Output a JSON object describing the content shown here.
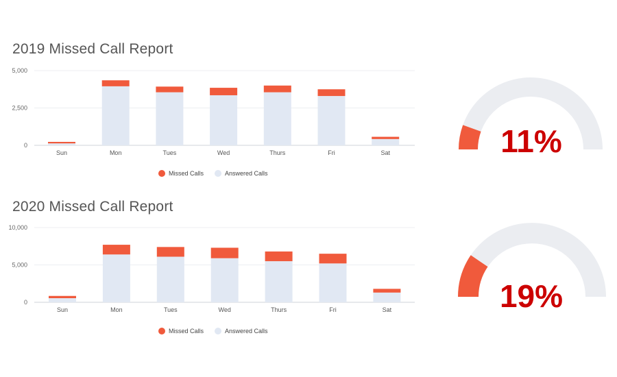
{
  "reports": [
    {
      "title": "2019 Missed Call Report",
      "gauge_value": "11%"
    },
    {
      "title": "2020 Missed Call Report",
      "gauge_value": "19%"
    }
  ],
  "colors": {
    "missed": "#f05a3c",
    "answered": "#e1e8f3",
    "gauge_track": "#ebedf1",
    "gauge_fill": "#f05a3c",
    "percent_text": "#cc0000"
  },
  "chart_data": [
    {
      "type": "bar",
      "stacked": true,
      "title": "2019 Missed Call Report",
      "categories": [
        "Sun",
        "Mon",
        "Tues",
        "Wed",
        "Thurs",
        "Fri",
        "Sat"
      ],
      "series": [
        {
          "name": "Answered Calls",
          "values": [
            130,
            3950,
            3550,
            3350,
            3550,
            3300,
            420
          ]
        },
        {
          "name": "Missed Calls",
          "values": [
            100,
            400,
            380,
            500,
            450,
            450,
            150
          ]
        }
      ],
      "ylim": [
        0,
        5000
      ],
      "yticks": [
        0,
        2500,
        5000
      ],
      "ytick_labels": [
        "0",
        "2,500",
        "5,000"
      ],
      "grid": true,
      "legend": "bottom"
    },
    {
      "type": "bar",
      "stacked": true,
      "title": "2020 Missed Call Report",
      "categories": [
        "Sun",
        "Mon",
        "Tues",
        "Wed",
        "Thurs",
        "Fri",
        "Sat"
      ],
      "series": [
        {
          "name": "Answered Calls",
          "values": [
            550,
            6400,
            6100,
            5900,
            5500,
            5200,
            1300
          ]
        },
        {
          "name": "Missed Calls",
          "values": [
            300,
            1300,
            1300,
            1400,
            1300,
            1300,
            500
          ]
        }
      ],
      "ylim": [
        0,
        10000
      ],
      "yticks": [
        0,
        5000,
        10000
      ],
      "ytick_labels": [
        "0",
        "5,000",
        "10,000"
      ],
      "grid": true,
      "legend": "bottom"
    }
  ],
  "gauges": [
    {
      "value": 0.11,
      "label": "11%"
    },
    {
      "value": 0.19,
      "label": "19%"
    }
  ]
}
